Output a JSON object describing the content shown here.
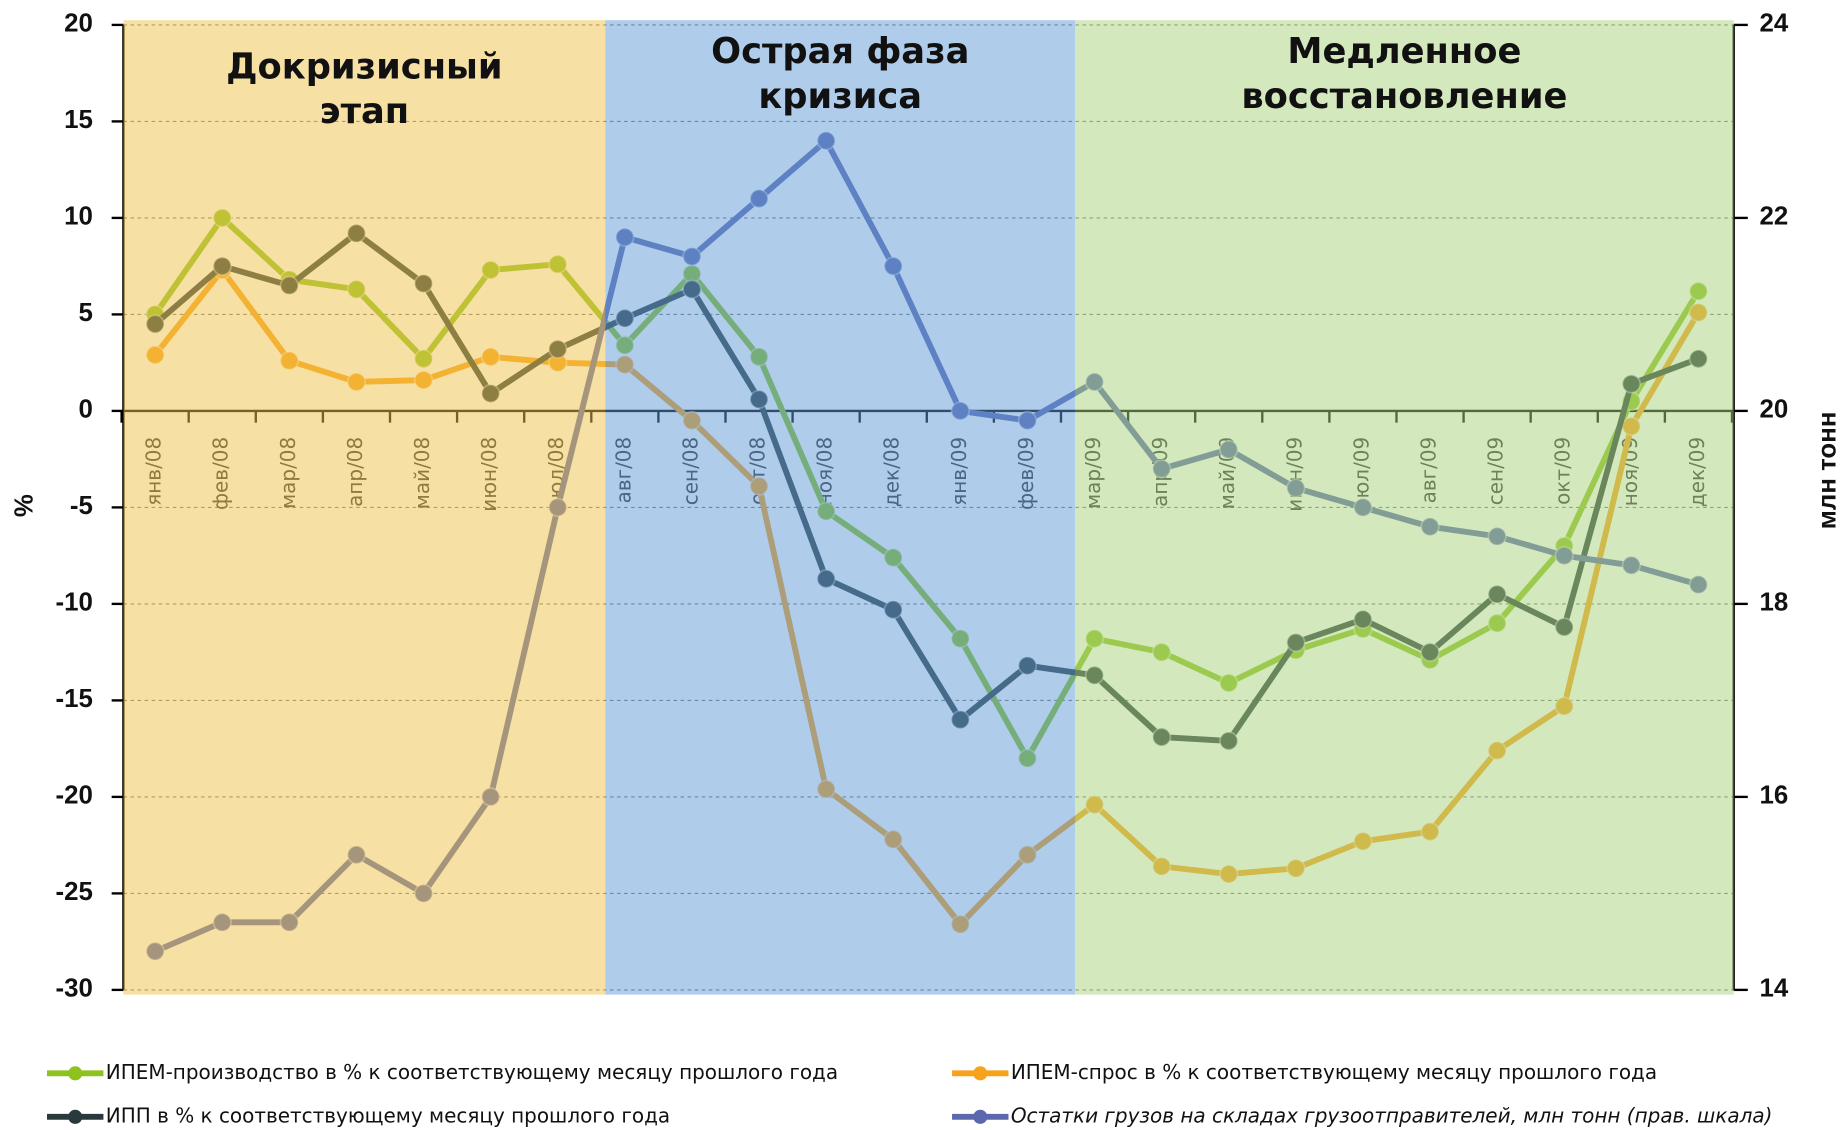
{
  "chart_data": {
    "type": "line",
    "categories": [
      "янв/08",
      "фев/08",
      "мар/08",
      "апр/08",
      "май/08",
      "июн/08",
      "июл/08",
      "авг/08",
      "сен/08",
      "окт/08",
      "ноя/08",
      "дек/08",
      "янв/09",
      "фев/09",
      "мар/09",
      "апр/09",
      "май/09",
      "июн/09",
      "июл/09",
      "авг/09",
      "сен/09",
      "окт/09",
      "ноя/09",
      "дек/09"
    ],
    "ylabel": "%",
    "y2label": "млн тонн",
    "ylim": [
      -30,
      20
    ],
    "yticks": [
      -30,
      -25,
      -20,
      -15,
      -10,
      -5,
      0,
      5,
      10,
      15,
      20
    ],
    "y2lim": [
      14,
      24
    ],
    "y2ticks": [
      14,
      16,
      18,
      20,
      22,
      24
    ],
    "grid": true,
    "phases": [
      {
        "lines": [
          "Докризисный",
          "этап"
        ],
        "from": "янв/08",
        "to": "июл/08",
        "color": "#f0c24a"
      },
      {
        "lines": [
          "Острая фаза",
          "кризиса"
        ],
        "from": "авг/08",
        "to": "фев/09",
        "color": "#5f9ad8"
      },
      {
        "lines": [
          "Медленное",
          "восстановление"
        ],
        "from": "мар/09",
        "to": "дек/09",
        "color": "#a9d17e"
      }
    ],
    "series": [
      {
        "name": "ИПЕМ-производство в % к соответствующему месяцу прошлого года",
        "color": "#8dc21f",
        "values": [
          5,
          10,
          6.8,
          6.3,
          2.7,
          7.3,
          7.6,
          3.4,
          7.1,
          2.8,
          -5.2,
          -7.6,
          -11.8,
          -18,
          -11.8,
          -12.5,
          -14.1,
          -12.4,
          -11.3,
          -12.9,
          -11,
          -7,
          0.5,
          6.2
        ]
      },
      {
        "name": "ИПЕМ-спрос в % к соответствующему месяцу прошлого года",
        "color": "#f7a21b",
        "values": [
          2.9,
          7.3,
          2.6,
          1.5,
          1.6,
          2.8,
          2.5,
          2.4,
          -0.5,
          -3.9,
          -19.6,
          -22.2,
          -26.6,
          -23,
          -20.4,
          -23.6,
          -24,
          -23.7,
          -22.3,
          -21.8,
          -17.6,
          -15.3,
          -0.8,
          5.1
        ]
      },
      {
        "name": "ИПП в % к соответствующему месяцу прошлого года",
        "color": "#2a3a3c",
        "values": [
          4.5,
          7.5,
          6.5,
          9.2,
          6.6,
          0.9,
          3.2,
          4.8,
          6.3,
          0.6,
          -8.7,
          -10.3,
          -16,
          -13.2,
          -13.7,
          -16.9,
          -17.1,
          -12,
          -10.8,
          -12.5,
          -9.5,
          -11.2,
          1.4,
          2.7
        ]
      },
      {
        "name": "Остатки грузов на складах грузоотправителей, млн тонн (прав. шкала)",
        "color": "#5b68ae",
        "axis": "y2",
        "values": [
          14.4,
          14.7,
          14.7,
          15.4,
          15.0,
          16.0,
          19.0,
          21.8,
          21.6,
          22.2,
          22.8,
          21.5,
          20.0,
          19.9,
          20.3,
          19.4,
          19.6,
          19.2,
          19.0,
          18.8,
          18.7,
          18.5,
          18.4,
          18.2
        ]
      }
    ]
  }
}
